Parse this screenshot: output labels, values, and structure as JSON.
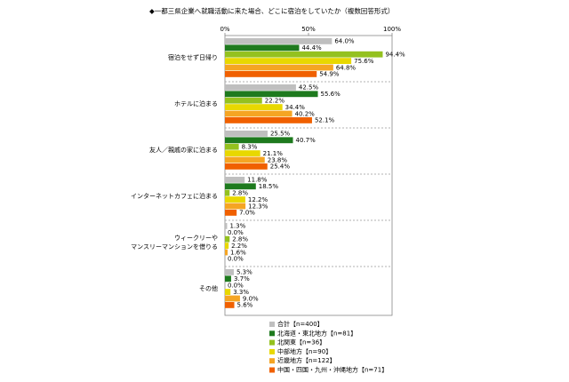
{
  "chart_data": {
    "type": "hbar",
    "title": "◆一都三県企業へ就職活動に来た場合、どこに宿泊をしていたか（複数回答形式）",
    "categories": [
      "宿泊をせず日帰り",
      "ホテルに泊まる",
      "友人／親戚の家に泊まる",
      "インターネットカフェに泊まる",
      "ウィークリーや\nマンスリーマンションを借りる",
      "その他"
    ],
    "xlim": [
      0,
      100
    ],
    "xticks": [
      {
        "value": 0,
        "label": "0%"
      },
      {
        "value": 50,
        "label": "50%"
      },
      {
        "value": 100,
        "label": "100%"
      }
    ],
    "legend": "bottom",
    "series": [
      {
        "name": "合計【n=400】",
        "color": "#bfbfbf",
        "values": [
          64.0,
          42.5,
          25.5,
          11.8,
          1.3,
          5.3
        ],
        "value_labels": [
          "64.0%",
          "42.5%",
          "25.5%",
          "11.8%",
          "1.3%",
          "5.3%"
        ]
      },
      {
        "name": "北海道・東北地方【n=81】",
        "color": "#1e7a1e",
        "values": [
          44.4,
          55.6,
          40.7,
          18.5,
          0.0,
          3.7
        ],
        "value_labels": [
          "44.4%",
          "55.6%",
          "40.7%",
          "18.5%",
          "0.0%",
          "3.7%"
        ]
      },
      {
        "name": "北関東【n=36】",
        "color": "#94c11f",
        "values": [
          94.4,
          22.2,
          8.3,
          2.8,
          2.8,
          0.0
        ],
        "value_labels": [
          "94.4%",
          "22.2%",
          "8.3%",
          "2.8%",
          "2.8%",
          "0.0%"
        ]
      },
      {
        "name": "中部地方【n=90】",
        "color": "#e8d800",
        "values": [
          75.6,
          34.4,
          21.1,
          12.2,
          2.2,
          3.3
        ],
        "value_labels": [
          "75.6%",
          "34.4%",
          "21.1%",
          "12.2%",
          "2.2%",
          "3.3%"
        ]
      },
      {
        "name": "近畿地方【n=122】",
        "color": "#f5a523",
        "values": [
          64.8,
          40.2,
          23.8,
          12.3,
          1.6,
          9.0
        ],
        "value_labels": [
          "64.8%",
          "40.2%",
          "23.8%",
          "12.3%",
          "1.6%",
          "9.0%"
        ]
      },
      {
        "name": "中国・四国・九州・沖縄地方【n=71】",
        "color": "#f06000",
        "values": [
          54.9,
          52.1,
          25.4,
          7.0,
          0.0,
          5.6
        ],
        "value_labels": [
          "54.9%",
          "52.1%",
          "25.4%",
          "7.0%",
          "0.0%",
          "5.6%"
        ]
      }
    ]
  }
}
